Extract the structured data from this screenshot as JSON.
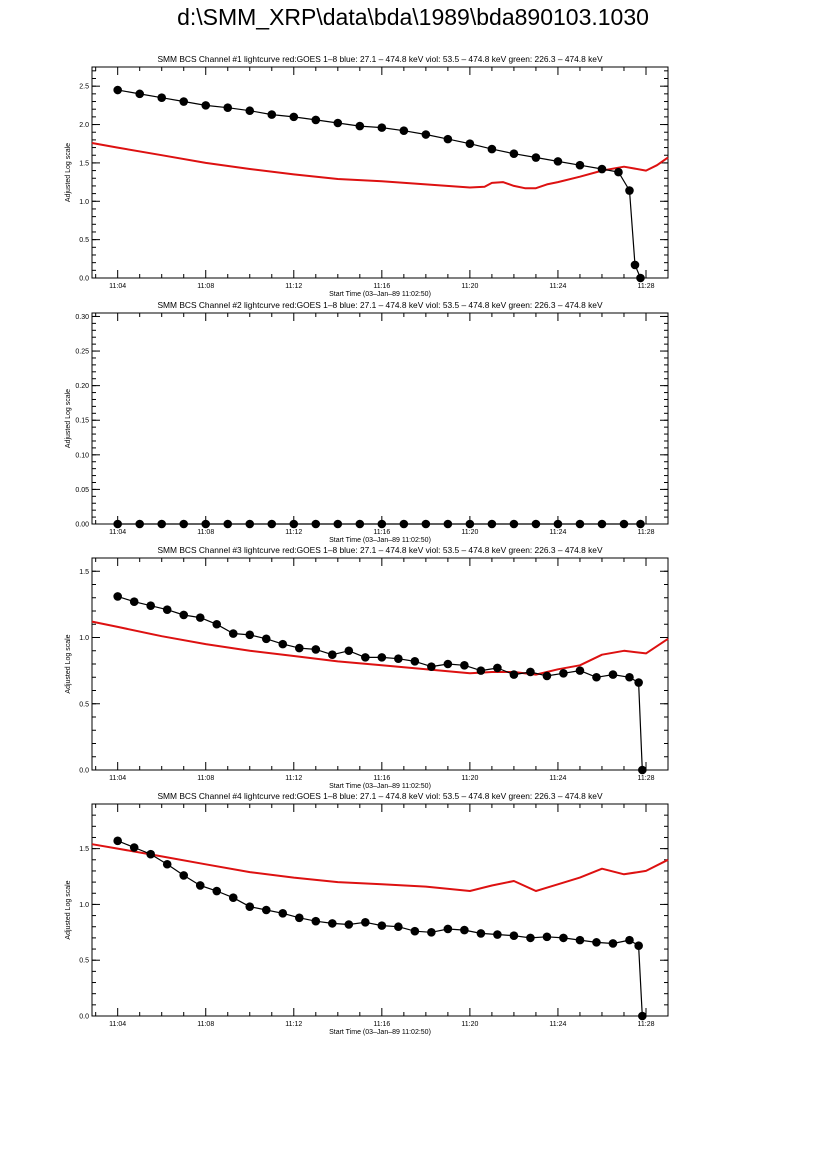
{
  "page_title": "d:\\SMM_XRP\\data\\bda\\1989\\bda890103.1030",
  "colors": {
    "goes": "#dd1111",
    "bcs": "#000000",
    "axes": "#000000",
    "background": "#ffffff"
  },
  "chart_data": [
    {
      "type": "line",
      "title": "SMM BCS Channel #1 lightcurve  red:GOES 1–8  blue: 27.1 – 474.8 keV  viol: 53.5 – 474.8 keV  green: 226.3 – 474.8 keV",
      "xlabel": "Start Time (03–Jan–89 11:02:50)",
      "ylabel": "Adjusted Log scale",
      "xlim": [
        "11:02:50",
        "11:29:00"
      ],
      "xticks": [
        "11:04",
        "11:08",
        "11:12",
        "11:16",
        "11:20",
        "11:24",
        "11:28"
      ],
      "ylim": [
        0,
        2.75
      ],
      "yticks": [
        "0.0",
        "0.5",
        "1.0",
        "1.5",
        "2.0",
        "2.5"
      ],
      "ytick_values": [
        0,
        0.5,
        1.0,
        1.5,
        2.0,
        2.5
      ],
      "series": [
        {
          "color": "#dd1111",
          "style": "line",
          "x": [
            "11:02:50",
            "11:04:00",
            "11:06:00",
            "11:08:00",
            "11:10:00",
            "11:12:00",
            "11:14:00",
            "11:16:00",
            "11:18:00",
            "11:20:00",
            "11:20:40",
            "11:21:00",
            "11:21:30",
            "11:22:00",
            "11:22:30",
            "11:23:00",
            "11:23:30",
            "11:24:00",
            "11:25:00",
            "11:26:00",
            "11:27:00",
            "11:28:00",
            "11:28:30",
            "11:29:00"
          ],
          "y": [
            1.76,
            1.7,
            1.6,
            1.5,
            1.42,
            1.35,
            1.29,
            1.26,
            1.22,
            1.18,
            1.19,
            1.24,
            1.25,
            1.2,
            1.17,
            1.17,
            1.22,
            1.25,
            1.32,
            1.4,
            1.45,
            1.4,
            1.47,
            1.57
          ]
        },
        {
          "color": "#000000",
          "style": "line+markers",
          "x": [
            "11:04:00",
            "11:05:00",
            "11:06:00",
            "11:07:00",
            "11:08:00",
            "11:09:00",
            "11:10:00",
            "11:11:00",
            "11:12:00",
            "11:13:00",
            "11:14:00",
            "11:15:00",
            "11:16:00",
            "11:17:00",
            "11:18:00",
            "11:19:00",
            "11:20:00",
            "11:21:00",
            "11:22:00",
            "11:23:00",
            "11:24:00",
            "11:25:00",
            "11:26:00",
            "11:26:45",
            "11:27:15",
            "11:27:30",
            "11:27:45"
          ],
          "y": [
            2.45,
            2.4,
            2.35,
            2.3,
            2.25,
            2.22,
            2.18,
            2.13,
            2.1,
            2.06,
            2.02,
            1.98,
            1.96,
            1.92,
            1.87,
            1.81,
            1.75,
            1.68,
            1.62,
            1.57,
            1.52,
            1.47,
            1.42,
            1.38,
            1.14,
            0.17,
            0.0
          ]
        }
      ]
    },
    {
      "type": "line",
      "title": "SMM BCS Channel #2 lightcurve  red:GOES 1–8  blue: 27.1 – 474.8 keV  viol: 53.5 – 474.8 keV  green: 226.3 – 474.8 keV",
      "xlabel": "Start Time (03–Jan–89 11:02:50)",
      "ylabel": "Adjusted Log scale",
      "xlim": [
        "11:02:50",
        "11:29:00"
      ],
      "xticks": [
        "11:04",
        "11:08",
        "11:12",
        "11:16",
        "11:20",
        "11:24",
        "11:28"
      ],
      "ylim": [
        0,
        0.305
      ],
      "yticks": [
        "0.00",
        "0.05",
        "0.10",
        "0.15",
        "0.20",
        "0.25",
        "0.30"
      ],
      "ytick_values": [
        0,
        0.05,
        0.1,
        0.15,
        0.2,
        0.25,
        0.3
      ],
      "series": [
        {
          "color": "#000000",
          "style": "line+markers",
          "x": [
            "11:04:00",
            "11:05:00",
            "11:06:00",
            "11:07:00",
            "11:08:00",
            "11:09:00",
            "11:10:00",
            "11:11:00",
            "11:12:00",
            "11:13:00",
            "11:14:00",
            "11:15:00",
            "11:16:00",
            "11:17:00",
            "11:18:00",
            "11:19:00",
            "11:20:00",
            "11:21:00",
            "11:22:00",
            "11:23:00",
            "11:24:00",
            "11:25:00",
            "11:26:00",
            "11:27:00",
            "11:27:45"
          ],
          "y": [
            0,
            0,
            0,
            0,
            0,
            0,
            0,
            0,
            0,
            0,
            0,
            0,
            0,
            0,
            0,
            0,
            0,
            0,
            0,
            0,
            0,
            0,
            0,
            0,
            0
          ]
        }
      ]
    },
    {
      "type": "line",
      "title": "SMM BCS Channel #3 lightcurve  red:GOES 1–8  blue: 27.1 – 474.8 keV  viol: 53.5 – 474.8 keV  green: 226.3 – 474.8 keV",
      "xlabel": "Start Time (03–Jan–89 11:02:50)",
      "ylabel": "Adjusted Log scale",
      "xlim": [
        "11:02:50",
        "11:29:00"
      ],
      "xticks": [
        "11:04",
        "11:08",
        "11:12",
        "11:16",
        "11:20",
        "11:24",
        "11:28"
      ],
      "ylim": [
        0,
        1.6
      ],
      "yticks": [
        "0.0",
        "0.5",
        "1.0",
        "1.5"
      ],
      "ytick_values": [
        0,
        0.5,
        1.0,
        1.5
      ],
      "series": [
        {
          "color": "#dd1111",
          "style": "line",
          "x": [
            "11:02:50",
            "11:04:00",
            "11:06:00",
            "11:08:00",
            "11:10:00",
            "11:12:00",
            "11:14:00",
            "11:16:00",
            "11:18:00",
            "11:20:00",
            "11:21:00",
            "11:22:00",
            "11:23:00",
            "11:24:00",
            "11:25:00",
            "11:26:00",
            "11:27:00",
            "11:28:00",
            "11:29:00"
          ],
          "y": [
            1.12,
            1.08,
            1.01,
            0.95,
            0.9,
            0.86,
            0.82,
            0.79,
            0.76,
            0.73,
            0.74,
            0.74,
            0.72,
            0.76,
            0.79,
            0.87,
            0.9,
            0.88,
            0.99
          ]
        },
        {
          "color": "#000000",
          "style": "line+markers",
          "x": [
            "11:04:00",
            "11:04:45",
            "11:05:30",
            "11:06:15",
            "11:07:00",
            "11:07:45",
            "11:08:30",
            "11:09:15",
            "11:10:00",
            "11:10:45",
            "11:11:30",
            "11:12:15",
            "11:13:00",
            "11:13:45",
            "11:14:30",
            "11:15:15",
            "11:16:00",
            "11:16:45",
            "11:17:30",
            "11:18:15",
            "11:19:00",
            "11:19:45",
            "11:20:30",
            "11:21:15",
            "11:22:00",
            "11:22:45",
            "11:23:30",
            "11:24:15",
            "11:25:00",
            "11:25:45",
            "11:26:30",
            "11:27:15",
            "11:27:40",
            "11:27:50"
          ],
          "y": [
            1.31,
            1.27,
            1.24,
            1.21,
            1.17,
            1.15,
            1.1,
            1.03,
            1.02,
            0.99,
            0.95,
            0.92,
            0.91,
            0.87,
            0.9,
            0.85,
            0.85,
            0.84,
            0.82,
            0.78,
            0.8,
            0.79,
            0.75,
            0.77,
            0.72,
            0.74,
            0.71,
            0.73,
            0.75,
            0.7,
            0.72,
            0.7,
            0.66,
            0.0
          ]
        }
      ]
    },
    {
      "type": "line",
      "title": "SMM BCS Channel #4 lightcurve  red:GOES 1–8  blue: 27.1 – 474.8 keV  viol: 53.5 – 474.8 keV  green: 226.3 – 474.8 keV",
      "xlabel": "Start Time (03–Jan–89 11:02:50)",
      "ylabel": "Adjusted Log scale",
      "xlim": [
        "11:02:50",
        "11:29:00"
      ],
      "xticks": [
        "11:04",
        "11:08",
        "11:12",
        "11:16",
        "11:20",
        "11:24",
        "11:28"
      ],
      "ylim": [
        0,
        1.9
      ],
      "yticks": [
        "0.0",
        "0.5",
        "1.0",
        "1.5"
      ],
      "ytick_values": [
        0,
        0.5,
        1.0,
        1.5
      ],
      "series": [
        {
          "color": "#dd1111",
          "style": "line",
          "x": [
            "11:02:50",
            "11:04:00",
            "11:06:00",
            "11:08:00",
            "11:10:00",
            "11:12:00",
            "11:14:00",
            "11:16:00",
            "11:18:00",
            "11:20:00",
            "11:21:00",
            "11:22:00",
            "11:23:00",
            "11:24:00",
            "11:25:00",
            "11:26:00",
            "11:27:00",
            "11:28:00",
            "11:29:00"
          ],
          "y": [
            1.54,
            1.5,
            1.43,
            1.36,
            1.29,
            1.24,
            1.2,
            1.18,
            1.16,
            1.12,
            1.17,
            1.21,
            1.12,
            1.18,
            1.24,
            1.32,
            1.27,
            1.3,
            1.4
          ]
        },
        {
          "color": "#000000",
          "style": "line+markers",
          "x": [
            "11:04:00",
            "11:04:45",
            "11:05:30",
            "11:06:15",
            "11:07:00",
            "11:07:45",
            "11:08:30",
            "11:09:15",
            "11:10:00",
            "11:10:45",
            "11:11:30",
            "11:12:15",
            "11:13:00",
            "11:13:45",
            "11:14:30",
            "11:15:15",
            "11:16:00",
            "11:16:45",
            "11:17:30",
            "11:18:15",
            "11:19:00",
            "11:19:45",
            "11:20:30",
            "11:21:15",
            "11:22:00",
            "11:22:45",
            "11:23:30",
            "11:24:15",
            "11:25:00",
            "11:25:45",
            "11:26:30",
            "11:27:15",
            "11:27:40",
            "11:27:50"
          ],
          "y": [
            1.57,
            1.51,
            1.45,
            1.36,
            1.26,
            1.17,
            1.12,
            1.06,
            0.98,
            0.95,
            0.92,
            0.88,
            0.85,
            0.83,
            0.82,
            0.84,
            0.81,
            0.8,
            0.76,
            0.75,
            0.78,
            0.77,
            0.74,
            0.73,
            0.72,
            0.7,
            0.71,
            0.7,
            0.68,
            0.66,
            0.65,
            0.68,
            0.63,
            0.0
          ]
        }
      ]
    }
  ]
}
